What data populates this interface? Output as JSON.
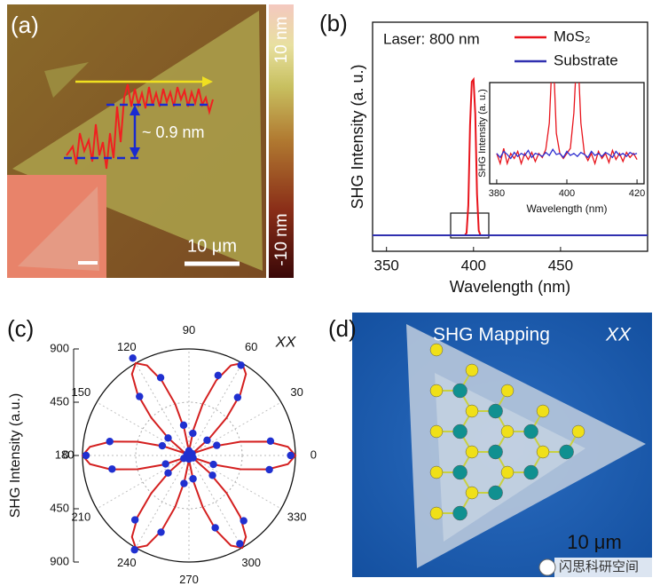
{
  "panels": {
    "a": {
      "label": "(a)",
      "colorbar_max": "10 nm",
      "colorbar_min": "-10 nm",
      "step_height": "~ 0.9 nm",
      "scale_bar": "10 μm"
    },
    "b": {
      "label": "(b)"
    },
    "c": {
      "label": "(c)"
    },
    "d": {
      "label": "(d)",
      "title": "SHG Mapping",
      "polarization": "XX",
      "scale_bar": "10 μm",
      "watermark": "闪思科研空间"
    }
  },
  "chart_data": [
    {
      "type": "line",
      "annotation": "Laser: 800 nm",
      "x_label": "Wavelength (nm)",
      "y_label": "SHG Intensity (a. u.)",
      "x": [
        342,
        380,
        390,
        395,
        396,
        397,
        398,
        399,
        400,
        401,
        402,
        403,
        404,
        410,
        450,
        500
      ],
      "series": [
        {
          "name": "MoS₂",
          "color": "#e8141c",
          "values": [
            7,
            7,
            7,
            7,
            8,
            20,
            55,
            74,
            75,
            60,
            25,
            9,
            7,
            7,
            7,
            7
          ]
        },
        {
          "name": "Substrate",
          "color": "#3030b0",
          "values": [
            7,
            7,
            7,
            7,
            7,
            7,
            7,
            7,
            7,
            7,
            7,
            7,
            7,
            7,
            7,
            7
          ]
        }
      ],
      "xlim": [
        342,
        500
      ],
      "ylim": [
        0,
        100
      ],
      "xticks": [
        350,
        400,
        450
      ],
      "legend": "upper right"
    },
    {
      "type": "line",
      "x_label": "Wavelength (nm)",
      "y_label": "SHG Intensity (a. u.)",
      "x": [
        380,
        381,
        382,
        383,
        384,
        385,
        386,
        387,
        388,
        389,
        390,
        391,
        392,
        393,
        394,
        395,
        396,
        397,
        398,
        399,
        400,
        401,
        402,
        403,
        404,
        405,
        406,
        407,
        408,
        409,
        410,
        411,
        412,
        413,
        414,
        415,
        416,
        417,
        418,
        419,
        420
      ],
      "series": [
        {
          "color": "#e8141c",
          "values": [
            3,
            2,
            3.5,
            2,
            3,
            2.5,
            3.2,
            2,
            3,
            2.4,
            3.1,
            2.2,
            3,
            2.6,
            3.4,
            6,
            14,
            5,
            3,
            2.5,
            3,
            3.5,
            7,
            14,
            6,
            3,
            2.3,
            3,
            2,
            3.2,
            2.5,
            3,
            2.1,
            3.3,
            2.4,
            3,
            2.2,
            3.1,
            2.6,
            3,
            2.4
          ]
        },
        {
          "color": "#3030d0",
          "values": [
            3,
            2.6,
            3.2,
            2.9,
            2.5,
            3.1,
            2.7,
            3,
            2.8,
            3.3,
            2.6,
            3,
            2.9,
            2.7,
            3.1,
            2.8,
            3.4,
            2.9,
            3,
            2.6,
            3.2,
            2.8,
            3,
            2.7,
            3.1,
            2.9,
            2.6,
            3.2,
            2.8,
            3,
            2.7,
            3.1,
            2.9,
            2.6,
            3.2,
            2.8,
            3,
            2.7,
            3.1,
            2.9,
            3
          ]
        }
      ],
      "xlim": [
        378,
        422
      ],
      "ylim": [
        0,
        10
      ],
      "xticks": [
        380,
        400,
        420
      ]
    },
    {
      "type": "polar",
      "y_label": "SHG Intensity (a.u.)",
      "annotation": "XX",
      "ylim": [
        -900,
        900
      ],
      "yticks": [
        {
          "value": 900,
          "label": "900"
        },
        {
          "value": 450,
          "label": "450"
        },
        0,
        {
          "value": -450,
          "label": "450"
        },
        {
          "value": -900,
          "label": "900"
        }
      ],
      "angle_ticks": [
        0,
        30,
        60,
        90,
        120,
        150,
        180,
        210,
        240,
        270,
        300,
        330
      ],
      "series": [
        {
          "style": "line",
          "color": "#d42020",
          "x": [
            0,
            5,
            10,
            15,
            20,
            25,
            30,
            35,
            40,
            45,
            50,
            55,
            60,
            65,
            70,
            75,
            80,
            85,
            90,
            95,
            100,
            105,
            110,
            115,
            120,
            125,
            130,
            135,
            140,
            145,
            150,
            155,
            160,
            165,
            170,
            175,
            180,
            185,
            190,
            195,
            200,
            205,
            210,
            215,
            220,
            225,
            230,
            235,
            240,
            245,
            250,
            255,
            260,
            265,
            270,
            275,
            280,
            285,
            290,
            295,
            300,
            305,
            310,
            315,
            320,
            325,
            330,
            335,
            340,
            345,
            350,
            355
          ],
          "values": [
            900,
            840,
            675,
            450,
            225,
            60,
            0,
            60,
            225,
            450,
            675,
            840,
            900,
            840,
            675,
            450,
            225,
            60,
            0,
            60,
            225,
            450,
            675,
            840,
            900,
            840,
            675,
            450,
            225,
            60,
            0,
            60,
            225,
            450,
            675,
            840,
            900,
            840,
            675,
            450,
            225,
            60,
            0,
            60,
            225,
            450,
            675,
            840,
            900,
            840,
            675,
            450,
            225,
            60,
            0,
            60,
            225,
            450,
            675,
            840,
            900,
            840,
            675,
            450,
            225,
            60,
            0,
            60,
            225,
            450,
            675,
            840
          ]
        },
        {
          "style": "markers",
          "color": "#2030d0",
          "x": [
            0,
            10,
            20,
            30,
            40,
            50,
            60,
            70,
            80,
            90,
            100,
            110,
            120,
            130,
            140,
            150,
            160,
            170,
            180,
            190,
            200,
            210,
            220,
            230,
            240,
            250,
            260,
            270,
            280,
            290,
            300,
            310,
            320,
            330,
            340,
            350
          ],
          "values": [
            860,
            700,
            250,
            30,
            200,
            640,
            880,
            720,
            190,
            40,
            260,
            700,
            950,
            650,
            230,
            20,
            240,
            680,
            870,
            660,
            210,
            50,
            230,
            710,
            920,
            690,
            240,
            30,
            200,
            650,
            860,
            720,
            260,
            40,
            220,
            690
          ]
        }
      ]
    }
  ]
}
